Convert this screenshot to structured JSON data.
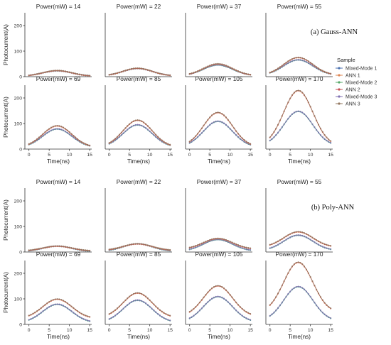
{
  "figure": {
    "groups": [
      {
        "label": "(a) Gauss-ANN"
      },
      {
        "label": "(b) Poly-ANN"
      }
    ],
    "legend": {
      "title": "Sample",
      "entries": [
        {
          "name": "Mixed-Mode 1",
          "color": "#4c72b0"
        },
        {
          "name": "ANN 1",
          "color": "#dd8452"
        },
        {
          "name": "Mixed-Mode 2",
          "color": "#55a868"
        },
        {
          "name": "ANN 2",
          "color": "#c44e52"
        },
        {
          "name": "Mixed-Mode 3",
          "color": "#8172b3"
        },
        {
          "name": "ANN 3",
          "color": "#937860"
        }
      ]
    }
  },
  "chart_data": [
    {
      "group": "(a) Gauss-ANN",
      "type": "scatter",
      "xlabel": "Time(ns)",
      "ylabel": "Photocurrent(A)",
      "xlim": [
        -1,
        15.5
      ],
      "ylim": [
        0,
        250
      ],
      "xticks": [
        "0",
        "5",
        "10",
        "15"
      ],
      "yticks": [
        "0",
        "100",
        "200"
      ],
      "x": [
        0,
        1,
        2,
        3,
        4,
        5,
        6,
        7,
        8,
        9,
        10,
        11,
        12,
        13,
        14,
        15
      ],
      "series_names": [
        "Mixed-Mode 1",
        "ANN 1",
        "Mixed-Mode 2",
        "ANN 2",
        "Mixed-Mode 3",
        "ANN 3"
      ],
      "panels": [
        {
          "title": "Power(mW) = 14",
          "peak_time": 7,
          "width": 3.6,
          "mixed": {
            "base": 1,
            "peak": 22
          },
          "ann": {
            "base": 1,
            "peak": 23
          }
        },
        {
          "title": "Power(mW) = 22",
          "peak_time": 7,
          "width": 3.6,
          "mixed": {
            "base": 2,
            "peak": 31
          },
          "ann": {
            "base": 2,
            "peak": 32
          }
        },
        {
          "title": "Power(mW) = 37",
          "peak_time": 7,
          "width": 3.6,
          "mixed": {
            "base": 3,
            "peak": 45
          },
          "ann": {
            "base": 3,
            "peak": 49
          }
        },
        {
          "title": "Power(mW) = 55",
          "peak_time": 7,
          "width": 3.6,
          "mixed": {
            "base": 5,
            "peak": 65
          },
          "ann": {
            "base": 5,
            "peak": 74
          }
        },
        {
          "title": "Power(mW) = 69",
          "peak_time": 7,
          "width": 3.6,
          "mixed": {
            "base": 6,
            "peak": 78
          },
          "ann": {
            "base": 6,
            "peak": 90
          }
        },
        {
          "title": "Power(mW) = 85",
          "peak_time": 7,
          "width": 3.6,
          "mixed": {
            "base": 7,
            "peak": 94
          },
          "ann": {
            "base": 7,
            "peak": 112
          }
        },
        {
          "title": "Power(mW) = 105",
          "peak_time": 7,
          "width": 3.6,
          "mixed": {
            "base": 8,
            "peak": 108
          },
          "ann": {
            "base": 8,
            "peak": 142
          }
        },
        {
          "title": "Power(mW) = 170",
          "peak_time": 7,
          "width": 3.6,
          "mixed": {
            "base": 12,
            "peak": 147
          },
          "ann": {
            "base": 12,
            "peak": 228
          }
        }
      ]
    },
    {
      "group": "(b) Poly-ANN",
      "type": "scatter",
      "xlabel": "Time(ns)",
      "ylabel": "Photocurrent(A)",
      "xlim": [
        -1,
        15.5
      ],
      "ylim": [
        0,
        250
      ],
      "xticks": [
        "0",
        "5",
        "10",
        "15"
      ],
      "yticks": [
        "0",
        "100",
        "200"
      ],
      "x": [
        0,
        1,
        2,
        3,
        4,
        5,
        6,
        7,
        8,
        9,
        10,
        11,
        12,
        13,
        14,
        15
      ],
      "series_names": [
        "Mixed-Mode 1",
        "ANN 1",
        "Mixed-Mode 2",
        "ANN 2",
        "Mixed-Mode 3",
        "ANN 3"
      ],
      "panels": [
        {
          "title": "Power(mW) = 14",
          "peak_time": 7,
          "width": 3.6,
          "mixed": {
            "base": 1,
            "peak": 22
          },
          "ann": {
            "base": 3,
            "peak": 22
          }
        },
        {
          "title": "Power(mW) = 22",
          "peak_time": 7,
          "width": 3.6,
          "mixed": {
            "base": 2,
            "peak": 31
          },
          "ann": {
            "base": 5,
            "peak": 31
          }
        },
        {
          "title": "Power(mW) = 37",
          "peak_time": 7,
          "width": 3.6,
          "mixed": {
            "base": 3,
            "peak": 48
          },
          "ann": {
            "base": 10,
            "peak": 52
          }
        },
        {
          "title": "Power(mW) = 55",
          "peak_time": 7,
          "width": 3.6,
          "mixed": {
            "base": 5,
            "peak": 65
          },
          "ann": {
            "base": 18,
            "peak": 78
          }
        },
        {
          "title": "Power(mW) = 69",
          "peak_time": 7,
          "width": 3.6,
          "mixed": {
            "base": 6,
            "peak": 78
          },
          "ann": {
            "base": 22,
            "peak": 98
          }
        },
        {
          "title": "Power(mW) = 85",
          "peak_time": 7,
          "width": 3.6,
          "mixed": {
            "base": 7,
            "peak": 94
          },
          "ann": {
            "base": 25,
            "peak": 122
          }
        },
        {
          "title": "Power(mW) = 105",
          "peak_time": 7,
          "width": 3.6,
          "mixed": {
            "base": 8,
            "peak": 108
          },
          "ann": {
            "base": 30,
            "peak": 150
          }
        },
        {
          "title": "Power(mW) = 170",
          "peak_time": 7,
          "width": 3.6,
          "mixed": {
            "base": 12,
            "peak": 147
          },
          "ann": {
            "base": 45,
            "peak": 242
          }
        }
      ]
    }
  ]
}
